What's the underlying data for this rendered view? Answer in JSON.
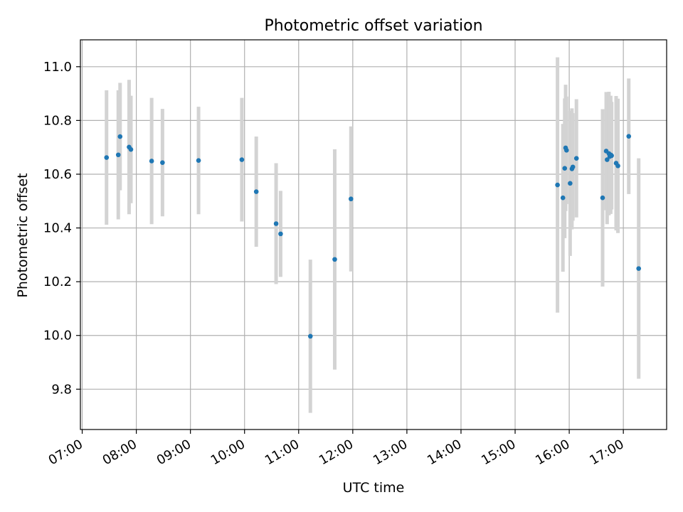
{
  "chart_data": {
    "type": "scatter",
    "title": "Photometric offset variation",
    "xlabel": "UTC time",
    "ylabel": "Photometric offset",
    "x_ticks": [
      "07:00",
      "08:00",
      "09:00",
      "10:00",
      "11:00",
      "12:00",
      "13:00",
      "14:00",
      "15:00",
      "16:00",
      "17:00"
    ],
    "y_ticks": [
      "9.8",
      "10.0",
      "10.2",
      "10.4",
      "10.6",
      "10.8",
      "11.0"
    ],
    "xlim": [
      "06:58",
      "17:48"
    ],
    "ylim": [
      9.65,
      11.1
    ],
    "grid": true,
    "colors": {
      "points": "#1f77b4",
      "errorbars": "#d3d3d3",
      "grid": "#b0b0b0"
    },
    "series": [
      {
        "points": [
          {
            "x": "07:27",
            "y": 10.662,
            "err": 0.25
          },
          {
            "x": "07:40",
            "y": 10.672,
            "err": 0.24
          },
          {
            "x": "07:42",
            "y": 10.74,
            "err": 0.2
          },
          {
            "x": "07:52",
            "y": 10.701,
            "err": 0.25
          },
          {
            "x": "07:54",
            "y": 10.692,
            "err": 0.2
          },
          {
            "x": "08:17",
            "y": 10.649,
            "err": 0.235
          },
          {
            "x": "08:29",
            "y": 10.643,
            "err": 0.2
          },
          {
            "x": "09:09",
            "y": 10.651,
            "err": 0.2
          },
          {
            "x": "09:57",
            "y": 10.654,
            "err": 0.23
          },
          {
            "x": "10:13",
            "y": 10.535,
            "err": 0.205
          },
          {
            "x": "10:35",
            "y": 10.416,
            "err": 0.225
          },
          {
            "x": "10:40",
            "y": 10.378,
            "err": 0.16
          },
          {
            "x": "11:13",
            "y": 9.997,
            "err": 0.285
          },
          {
            "x": "11:40",
            "y": 10.283,
            "err": 0.41
          },
          {
            "x": "11:58",
            "y": 10.508,
            "err": 0.27
          },
          {
            "x": "15:47",
            "y": 10.56,
            "err": 0.475
          },
          {
            "x": "15:53",
            "y": 10.512,
            "err": 0.275
          },
          {
            "x": "15:55",
            "y": 10.622,
            "err": 0.26
          },
          {
            "x": "15:56",
            "y": 10.698,
            "err": 0.235
          },
          {
            "x": "15:57",
            "y": 10.689,
            "err": 0.2
          },
          {
            "x": "16:01",
            "y": 10.566,
            "err": 0.27
          },
          {
            "x": "16:03",
            "y": 10.62,
            "err": 0.225
          },
          {
            "x": "16:04",
            "y": 10.627,
            "err": 0.2
          },
          {
            "x": "16:08",
            "y": 10.659,
            "err": 0.22
          },
          {
            "x": "16:37",
            "y": 10.512,
            "err": 0.33
          },
          {
            "x": "16:41",
            "y": 10.686,
            "err": 0.22
          },
          {
            "x": "16:42",
            "y": 10.654,
            "err": 0.24
          },
          {
            "x": "16:44",
            "y": 10.677,
            "err": 0.23
          },
          {
            "x": "16:45",
            "y": 10.666,
            "err": 0.2
          },
          {
            "x": "16:46",
            "y": 10.672,
            "err": 0.22
          },
          {
            "x": "16:47",
            "y": 10.669,
            "err": 0.2
          },
          {
            "x": "16:52",
            "y": 10.641,
            "err": 0.25
          },
          {
            "x": "16:54",
            "y": 10.631,
            "err": 0.25
          },
          {
            "x": "17:06",
            "y": 10.741,
            "err": 0.215
          },
          {
            "x": "17:17",
            "y": 10.249,
            "err": 0.41
          }
        ]
      }
    ]
  }
}
